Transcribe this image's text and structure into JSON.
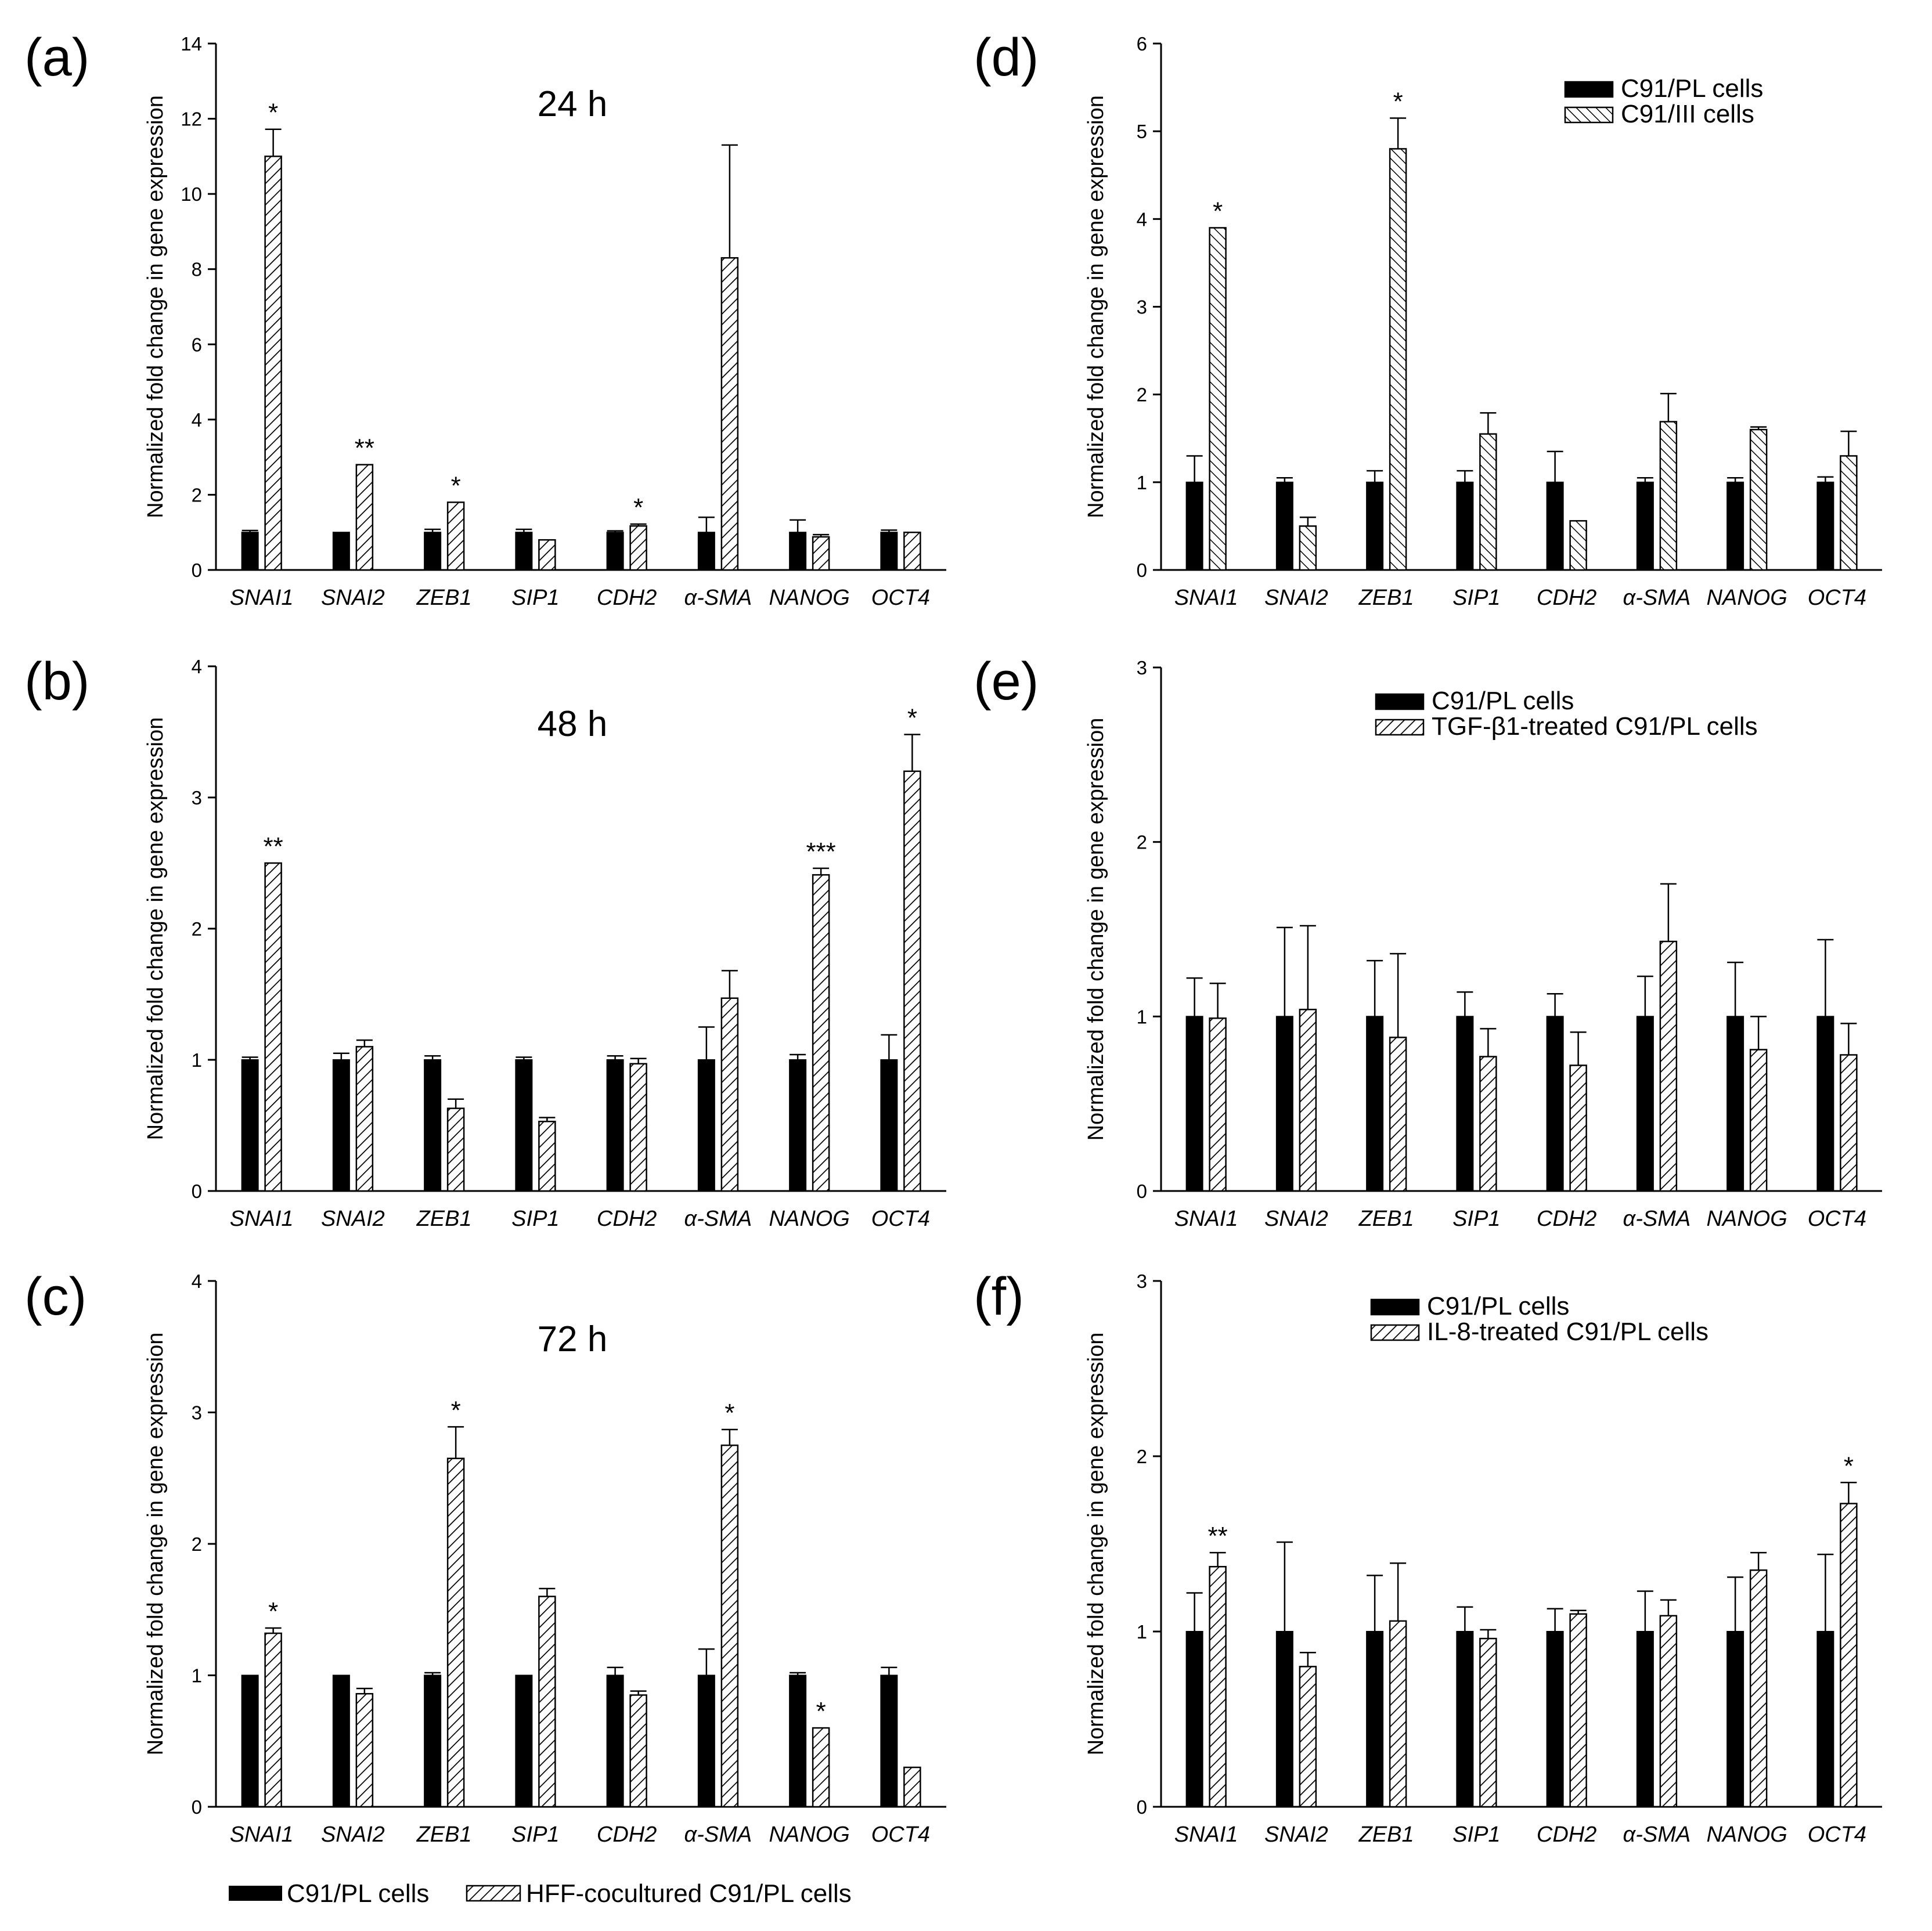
{
  "chart_data": [
    {
      "panel": "(a)",
      "type": "bar",
      "title": "24 h",
      "ylabel": "Normalized fold change in gene expression",
      "ylim": [
        0,
        14
      ],
      "yticks": [
        0,
        2,
        4,
        6,
        8,
        10,
        12,
        14
      ],
      "categories": [
        "SNAI1",
        "SNAI2",
        "ZEB1",
        "SIP1",
        "CDH2",
        "α-SMA",
        "NANOG",
        "OCT4"
      ],
      "series": [
        {
          "name": "C91/PL cells",
          "values": [
            1.0,
            1.0,
            1.0,
            1.0,
            1.0,
            1.0,
            1.0,
            1.0
          ],
          "errors": [
            0.05,
            0,
            0.08,
            0.08,
            0.04,
            0.4,
            0.33,
            0.06
          ]
        },
        {
          "name": "HFF-cocultured C91/PL cells",
          "values": [
            11.0,
            2.8,
            1.8,
            0.8,
            1.17,
            8.3,
            0.88,
            1.0
          ],
          "errors": [
            0.72,
            0,
            0,
            0,
            0.05,
            3.0,
            0.06,
            0
          ]
        }
      ],
      "annotations": [
        "*",
        "**",
        "*",
        "",
        "*",
        "",
        "",
        ""
      ],
      "legend": null
    },
    {
      "panel": "(b)",
      "type": "bar",
      "title": "48 h",
      "ylabel": "Normalized fold change in gene expression",
      "ylim": [
        0,
        4
      ],
      "yticks": [
        0,
        1,
        2,
        3,
        4
      ],
      "categories": [
        "SNAI1",
        "SNAI2",
        "ZEB1",
        "SIP1",
        "CDH2",
        "α-SMA",
        "NANOG",
        "OCT4"
      ],
      "series": [
        {
          "name": "C91/PL cells",
          "values": [
            1.0,
            1.0,
            1.0,
            1.0,
            1.0,
            1.0,
            1.0,
            1.0
          ],
          "errors": [
            0.02,
            0.05,
            0.03,
            0.02,
            0.03,
            0.25,
            0.04,
            0.19
          ]
        },
        {
          "name": "HFF-cocultured C91/PL cells",
          "values": [
            2.5,
            1.1,
            0.63,
            0.53,
            0.97,
            1.47,
            2.41,
            3.2
          ],
          "errors": [
            0,
            0.05,
            0.07,
            0.03,
            0.04,
            0.21,
            0.05,
            0.28
          ]
        }
      ],
      "annotations": [
        "**",
        "",
        "",
        "",
        "",
        "",
        "***",
        "*"
      ],
      "legend": null
    },
    {
      "panel": "(c)",
      "type": "bar",
      "title": "72 h",
      "ylabel": "Normalized fold change in gene expression",
      "ylim": [
        0,
        4
      ],
      "yticks": [
        0,
        1,
        2,
        3,
        4
      ],
      "categories": [
        "SNAI1",
        "SNAI2",
        "ZEB1",
        "SIP1",
        "CDH2",
        "α-SMA",
        "NANOG",
        "OCT4"
      ],
      "series": [
        {
          "name": "C91/PL cells",
          "values": [
            1.0,
            1.0,
            1.0,
            1.0,
            1.0,
            1.0,
            1.0,
            1.0
          ],
          "errors": [
            0,
            0,
            0.02,
            0,
            0.06,
            0.2,
            0.02,
            0.06
          ]
        },
        {
          "name": "HFF-cocultured C91/PL cells",
          "values": [
            1.32,
            0.86,
            2.65,
            1.6,
            0.85,
            2.75,
            0.6,
            0.3
          ],
          "errors": [
            0.04,
            0.04,
            0.24,
            0.06,
            0.03,
            0.12,
            0,
            0
          ]
        }
      ],
      "annotations": [
        "*",
        "",
        "*",
        "",
        "",
        "*",
        "*",
        ""
      ],
      "legend": null
    },
    {
      "panel": "(d)",
      "type": "bar",
      "title": "",
      "ylabel": "Normalized fold change in gene expression",
      "ylim": [
        0,
        6
      ],
      "yticks": [
        0,
        1,
        2,
        3,
        4,
        5,
        6
      ],
      "categories": [
        "SNAI1",
        "SNAI2",
        "ZEB1",
        "SIP1",
        "CDH2",
        "α-SMA",
        "NANOG",
        "OCT4"
      ],
      "series": [
        {
          "name": "C91/PL cells",
          "values": [
            1.0,
            1.0,
            1.0,
            1.0,
            1.0,
            1.0,
            1.0,
            1.0
          ],
          "errors": [
            0.3,
            0.05,
            0.13,
            0.13,
            0.35,
            0.05,
            0.05,
            0.06
          ]
        },
        {
          "name": "C91/III cells",
          "values": [
            3.9,
            0.5,
            4.8,
            1.55,
            0.56,
            1.69,
            1.6,
            1.3
          ],
          "errors": [
            0,
            0.1,
            0.35,
            0.24,
            0,
            0.32,
            0.03,
            0.28
          ]
        }
      ],
      "annotations": [
        "*",
        "",
        "*",
        "",
        "",
        "",
        "",
        ""
      ],
      "legend": [
        "C91/PL cells",
        "C91/III cells"
      ]
    },
    {
      "panel": "(e)",
      "type": "bar",
      "title": "",
      "ylabel": "Normalized fold change in gene expression",
      "ylim": [
        0,
        3
      ],
      "yticks": [
        0,
        1,
        2,
        3
      ],
      "categories": [
        "SNAI1",
        "SNAI2",
        "ZEB1",
        "SIP1",
        "CDH2",
        "α-SMA",
        "NANOG",
        "OCT4"
      ],
      "series": [
        {
          "name": "C91/PL cells",
          "values": [
            1.0,
            1.0,
            1.0,
            1.0,
            1.0,
            1.0,
            1.0,
            1.0
          ],
          "errors": [
            0.22,
            0.51,
            0.32,
            0.14,
            0.13,
            0.23,
            0.31,
            0.44
          ]
        },
        {
          "name": "TGF-β1-treated C91/PL cells",
          "values": [
            0.99,
            1.04,
            0.88,
            0.77,
            0.72,
            1.43,
            0.81,
            0.78
          ],
          "errors": [
            0.2,
            0.48,
            0.48,
            0.16,
            0.19,
            0.33,
            0.19,
            0.18
          ]
        }
      ],
      "annotations": [
        "",
        "",
        "",
        "",
        "",
        "",
        "",
        ""
      ],
      "legend": [
        "C91/PL cells",
        "TGF-β1-treated C91/PL cells"
      ]
    },
    {
      "panel": "(f)",
      "type": "bar",
      "title": "",
      "ylabel": "Normalized fold change in gene expression",
      "ylim": [
        0,
        3
      ],
      "yticks": [
        0,
        1,
        2,
        3
      ],
      "categories": [
        "SNAI1",
        "SNAI2",
        "ZEB1",
        "SIP1",
        "CDH2",
        "α-SMA",
        "NANOG",
        "OCT4"
      ],
      "series": [
        {
          "name": "C91/PL cells",
          "values": [
            1.0,
            1.0,
            1.0,
            1.0,
            1.0,
            1.0,
            1.0,
            1.0
          ],
          "errors": [
            0.22,
            0.51,
            0.32,
            0.14,
            0.13,
            0.23,
            0.31,
            0.44
          ]
        },
        {
          "name": "IL-8-treated C91/PL cells",
          "values": [
            1.37,
            0.8,
            1.06,
            0.96,
            1.1,
            1.09,
            1.35,
            1.73
          ],
          "errors": [
            0.08,
            0.08,
            0.33,
            0.05,
            0.02,
            0.09,
            0.1,
            0.12
          ]
        }
      ],
      "annotations": [
        "**",
        "",
        "",
        "",
        "",
        "",
        "",
        "*"
      ],
      "legend": [
        "C91/PL cells",
        "IL-8-treated C91/PL cells"
      ]
    }
  ],
  "bottom_legend": [
    "C91/PL cells",
    "HFF-cocultured C91/PL cells"
  ]
}
